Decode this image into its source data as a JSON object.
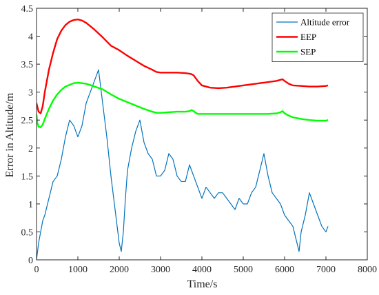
{
  "chart_data": {
    "type": "line",
    "title": "",
    "xlabel": "Time/s",
    "ylabel": "Error in Altitude/m",
    "xlim": [
      0,
      8000
    ],
    "ylim": [
      0,
      4.5
    ],
    "xticks": [
      0,
      1000,
      2000,
      3000,
      4000,
      5000,
      6000,
      7000,
      8000
    ],
    "yticks": [
      0,
      0.5,
      1,
      1.5,
      2,
      2.5,
      3,
      3.5,
      4,
      4.5
    ],
    "xtick_labels": [
      "0",
      "1000",
      "2000",
      "3000",
      "4000",
      "5000",
      "6000",
      "7000",
      "8000"
    ],
    "ytick_labels": [
      "0",
      "0.5",
      "1",
      "1.5",
      "2",
      "2.5",
      "3",
      "3.5",
      "4",
      "4.5"
    ],
    "grid": false,
    "legend": "top-right",
    "series": [
      {
        "name": "Altitude error",
        "color": "#0072BD",
        "x": [
          0,
          50,
          100,
          150,
          200,
          300,
          400,
          500,
          600,
          700,
          800,
          900,
          1000,
          1100,
          1200,
          1300,
          1400,
          1500,
          1600,
          1700,
          1800,
          1900,
          2000,
          2050,
          2100,
          2150,
          2200,
          2300,
          2400,
          2500,
          2600,
          2700,
          2800,
          2900,
          3000,
          3100,
          3200,
          3300,
          3400,
          3500,
          3600,
          3700,
          3800,
          3900,
          4000,
          4100,
          4200,
          4300,
          4400,
          4500,
          4600,
          4700,
          4800,
          4900,
          5000,
          5100,
          5200,
          5300,
          5400,
          5500,
          5600,
          5700,
          5800,
          5900,
          6000,
          6100,
          6200,
          6300,
          6350,
          6400,
          6500,
          6600,
          6700,
          6800,
          6900,
          7000,
          7050
        ],
        "y": [
          0.0,
          0.3,
          0.5,
          0.7,
          0.8,
          1.1,
          1.4,
          1.5,
          1.8,
          2.2,
          2.5,
          2.4,
          2.2,
          2.4,
          2.8,
          3.0,
          3.2,
          3.4,
          2.8,
          2.2,
          1.5,
          0.9,
          0.3,
          0.15,
          0.5,
          1.1,
          1.6,
          2.0,
          2.3,
          2.5,
          2.1,
          1.9,
          1.8,
          1.5,
          1.5,
          1.6,
          1.9,
          1.8,
          1.5,
          1.4,
          1.4,
          1.7,
          1.5,
          1.3,
          1.1,
          1.3,
          1.2,
          1.1,
          1.2,
          1.2,
          1.1,
          1.0,
          0.9,
          1.1,
          1.0,
          1.0,
          1.2,
          1.3,
          1.6,
          1.9,
          1.5,
          1.2,
          1.1,
          1.0,
          0.8,
          0.7,
          0.6,
          0.3,
          0.15,
          0.5,
          0.8,
          1.2,
          1.0,
          0.8,
          0.6,
          0.5,
          0.6
        ]
      },
      {
        "name": "EEP",
        "color": "#FF0000",
        "x": [
          0,
          50,
          100,
          150,
          200,
          300,
          400,
          500,
          600,
          700,
          800,
          900,
          1000,
          1100,
          1200,
          1400,
          1600,
          1800,
          2000,
          2200,
          2400,
          2600,
          2800,
          2900,
          3000,
          3200,
          3400,
          3600,
          3700,
          3750,
          3800,
          3850,
          3900,
          4000,
          4200,
          4400,
          4600,
          4800,
          5000,
          5200,
          5400,
          5600,
          5800,
          5900,
          5950,
          6000,
          6100,
          6200,
          6400,
          6600,
          6800,
          7000,
          7050
        ],
        "y": [
          2.8,
          2.65,
          2.62,
          2.75,
          3.0,
          3.4,
          3.7,
          3.95,
          4.1,
          4.2,
          4.26,
          4.29,
          4.3,
          4.28,
          4.24,
          4.12,
          3.98,
          3.83,
          3.75,
          3.65,
          3.56,
          3.47,
          3.4,
          3.36,
          3.35,
          3.35,
          3.35,
          3.34,
          3.33,
          3.32,
          3.3,
          3.25,
          3.2,
          3.12,
          3.08,
          3.07,
          3.08,
          3.1,
          3.12,
          3.14,
          3.16,
          3.18,
          3.2,
          3.22,
          3.23,
          3.2,
          3.15,
          3.12,
          3.11,
          3.1,
          3.1,
          3.11,
          3.12
        ]
      },
      {
        "name": "SEP",
        "color": "#00FF00",
        "x": [
          0,
          20,
          50,
          100,
          150,
          200,
          300,
          400,
          500,
          600,
          700,
          800,
          900,
          1000,
          1100,
          1200,
          1400,
          1600,
          1800,
          2000,
          2200,
          2400,
          2600,
          2800,
          2900,
          3000,
          3200,
          3400,
          3600,
          3700,
          3750,
          3800,
          3850,
          3900,
          4000,
          4200,
          4400,
          4600,
          4800,
          5000,
          5200,
          5400,
          5600,
          5800,
          5900,
          5950,
          6000,
          6100,
          6200,
          6400,
          6600,
          6800,
          7000,
          7050
        ],
        "y": [
          2.6,
          2.45,
          2.38,
          2.37,
          2.42,
          2.52,
          2.7,
          2.85,
          2.96,
          3.04,
          3.1,
          3.13,
          3.16,
          3.17,
          3.16,
          3.15,
          3.1,
          3.05,
          2.96,
          2.88,
          2.82,
          2.76,
          2.7,
          2.65,
          2.63,
          2.63,
          2.64,
          2.65,
          2.65,
          2.66,
          2.68,
          2.66,
          2.63,
          2.61,
          2.61,
          2.61,
          2.61,
          2.61,
          2.61,
          2.61,
          2.61,
          2.61,
          2.61,
          2.62,
          2.64,
          2.66,
          2.62,
          2.58,
          2.55,
          2.52,
          2.5,
          2.49,
          2.49,
          2.5
        ]
      }
    ]
  }
}
